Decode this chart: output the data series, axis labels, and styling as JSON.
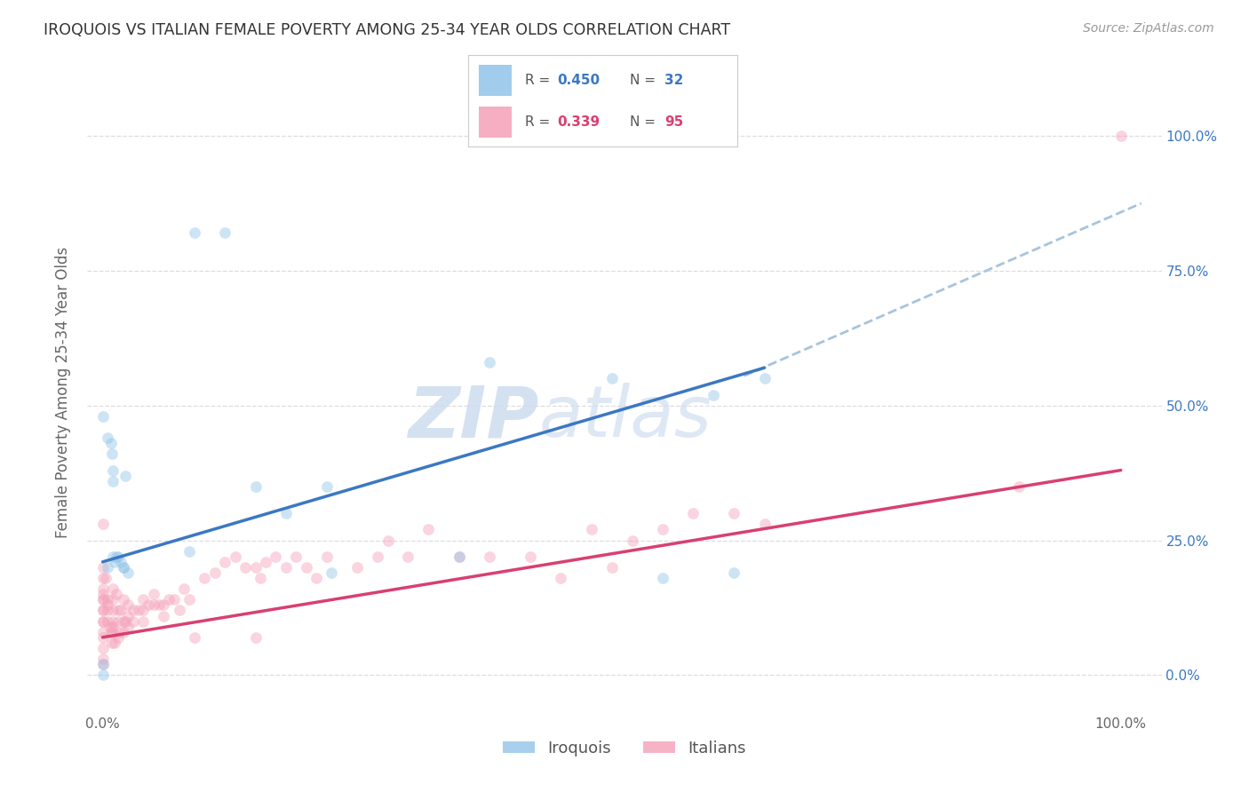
{
  "title": "IROQUOIS VS ITALIAN FEMALE POVERTY AMONG 25-34 YEAR OLDS CORRELATION CHART",
  "source": "Source: ZipAtlas.com",
  "ylabel": "Female Poverty Among 25-34 Year Olds",
  "iroquois_color": "#92C4E8",
  "italians_color": "#F4A0B8",
  "iroquois_line_color": "#3B78C3",
  "italians_line_color": "#D84070",
  "dashed_line_color": "#A8C4DC",
  "watermark_color": "#D0DEF0",
  "background_color": "#FFFFFF",
  "grid_color": "#DDDDDD",
  "iroquois_x": [
    0.0,
    0.0,
    0.005,
    0.008,
    0.009,
    0.01,
    0.01,
    0.01,
    0.012,
    0.013,
    0.015,
    0.018,
    0.02,
    0.022,
    0.025,
    0.085,
    0.09,
    0.12,
    0.15,
    0.18,
    0.22,
    0.225,
    0.35,
    0.38,
    0.5,
    0.55,
    0.6,
    0.62,
    0.65,
    0.0,
    0.005,
    0.02
  ],
  "iroquois_y": [
    0.02,
    0.0,
    0.44,
    0.43,
    0.41,
    0.38,
    0.36,
    0.22,
    0.21,
    0.22,
    0.22,
    0.21,
    0.2,
    0.37,
    0.19,
    0.23,
    0.82,
    0.82,
    0.35,
    0.3,
    0.35,
    0.19,
    0.22,
    0.58,
    0.55,
    0.18,
    0.52,
    0.19,
    0.55,
    0.48,
    0.2,
    0.2
  ],
  "italians_x": [
    0.0,
    0.0,
    0.0,
    0.0,
    0.0,
    0.0,
    0.0,
    0.0,
    0.0,
    0.0,
    0.0,
    0.0,
    0.003,
    0.005,
    0.005,
    0.005,
    0.007,
    0.008,
    0.009,
    0.01,
    0.01,
    0.01,
    0.01,
    0.01,
    0.012,
    0.013,
    0.015,
    0.015,
    0.016,
    0.018,
    0.02,
    0.02,
    0.022,
    0.025,
    0.025,
    0.03,
    0.03,
    0.035,
    0.04,
    0.04,
    0.045,
    0.05,
    0.05,
    0.055,
    0.06,
    0.065,
    0.07,
    0.075,
    0.08,
    0.085,
    0.09,
    0.1,
    0.11,
    0.12,
    0.13,
    0.14,
    0.15,
    0.15,
    0.155,
    0.16,
    0.17,
    0.18,
    0.19,
    0.2,
    0.21,
    0.22,
    0.25,
    0.27,
    0.28,
    0.3,
    0.32,
    0.35,
    0.38,
    0.42,
    0.45,
    0.48,
    0.5,
    0.52,
    0.55,
    0.58,
    0.62,
    0.65,
    0.9,
    1.0,
    0.0,
    0.0,
    0.0,
    0.0,
    0.005,
    0.01,
    0.015,
    0.02,
    0.025,
    0.04,
    0.06
  ],
  "italians_y": [
    0.28,
    0.2,
    0.18,
    0.15,
    0.14,
    0.12,
    0.1,
    0.08,
    0.07,
    0.05,
    0.03,
    0.02,
    0.18,
    0.14,
    0.13,
    0.1,
    0.09,
    0.08,
    0.06,
    0.16,
    0.14,
    0.12,
    0.1,
    0.08,
    0.06,
    0.15,
    0.12,
    0.1,
    0.08,
    0.12,
    0.14,
    0.1,
    0.1,
    0.13,
    0.11,
    0.12,
    0.1,
    0.12,
    0.14,
    0.1,
    0.13,
    0.15,
    0.13,
    0.13,
    0.13,
    0.14,
    0.14,
    0.12,
    0.16,
    0.14,
    0.07,
    0.18,
    0.19,
    0.21,
    0.22,
    0.2,
    0.2,
    0.07,
    0.18,
    0.21,
    0.22,
    0.2,
    0.22,
    0.2,
    0.18,
    0.22,
    0.2,
    0.22,
    0.25,
    0.22,
    0.27,
    0.22,
    0.22,
    0.22,
    0.18,
    0.27,
    0.2,
    0.25,
    0.27,
    0.3,
    0.3,
    0.28,
    0.35,
    1.0,
    0.16,
    0.14,
    0.12,
    0.1,
    0.12,
    0.09,
    0.07,
    0.08,
    0.09,
    0.12,
    0.11
  ],
  "xticks": [
    0.0,
    0.25,
    0.5,
    0.75,
    1.0
  ],
  "xtick_labels": [
    "0.0%",
    "",
    "",
    "",
    "100.0%"
  ],
  "yticks": [
    0.0,
    0.25,
    0.5,
    0.75,
    1.0
  ],
  "ytick_labels_right": [
    "0.0%",
    "25.0%",
    "50.0%",
    "75.0%",
    "100.0%"
  ],
  "xlim": [
    -0.015,
    1.04
  ],
  "ylim": [
    -0.07,
    1.12
  ],
  "marker_size": 85,
  "marker_alpha": 0.45,
  "iroquois_trend": [
    0.0,
    0.65,
    0.21,
    0.57
  ],
  "italians_trend": [
    0.0,
    1.0,
    0.07,
    0.38
  ],
  "dashed_trend": [
    0.63,
    1.02,
    0.555,
    0.875
  ]
}
